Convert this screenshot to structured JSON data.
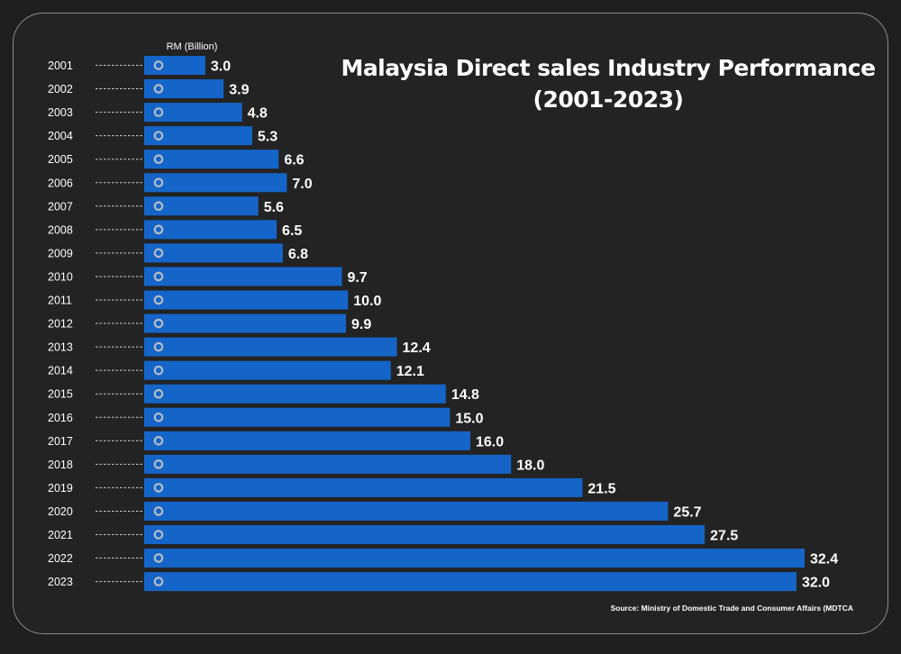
{
  "chart_data": {
    "type": "bar",
    "orientation": "horizontal",
    "title": "Malaysia Direct sales Industry Performance (2001-2023)",
    "title_lines": [
      "Malaysia Direct sales Industry Performance",
      "(2001-2023)"
    ],
    "unit_label": "RM (Billion)",
    "source": "Source: Ministry of Domestic Trade and Consumer Affairs (MDTCA",
    "categories": [
      "2001",
      "2002",
      "2003",
      "2004",
      "2005",
      "2006",
      "2007",
      "2008",
      "2009",
      "2010",
      "2011",
      "2012",
      "2013",
      "2014",
      "2015",
      "2016",
      "2017",
      "2018",
      "2019",
      "2020",
      "2021",
      "2022",
      "2023"
    ],
    "values": [
      3.0,
      3.9,
      4.8,
      5.3,
      6.6,
      7.0,
      5.6,
      6.5,
      6.8,
      9.7,
      10.0,
      9.9,
      12.4,
      12.1,
      14.8,
      15.0,
      16.0,
      18.0,
      21.5,
      25.7,
      27.5,
      32.4,
      32.0
    ],
    "value_labels": [
      "3.0",
      "3.9",
      "4.8",
      "5.3",
      "6.6",
      "7.0",
      "5.6",
      "6.5",
      "6.8",
      "9.7",
      "10.0",
      "9.9",
      "12.4",
      "12.1",
      "14.8",
      "15.0",
      "16.0",
      "18.0",
      "21.5",
      "25.7",
      "27.5",
      "32.4",
      "32.0"
    ],
    "xlim": [
      0,
      32.4
    ],
    "grid": false,
    "legend": "none",
    "colors": {
      "bar": "#1565c8",
      "marker": "#b7bcc4",
      "leader": "#cfcfcf",
      "text": "#ffffff",
      "background": "#232323",
      "border": "#8c8c8c"
    }
  }
}
